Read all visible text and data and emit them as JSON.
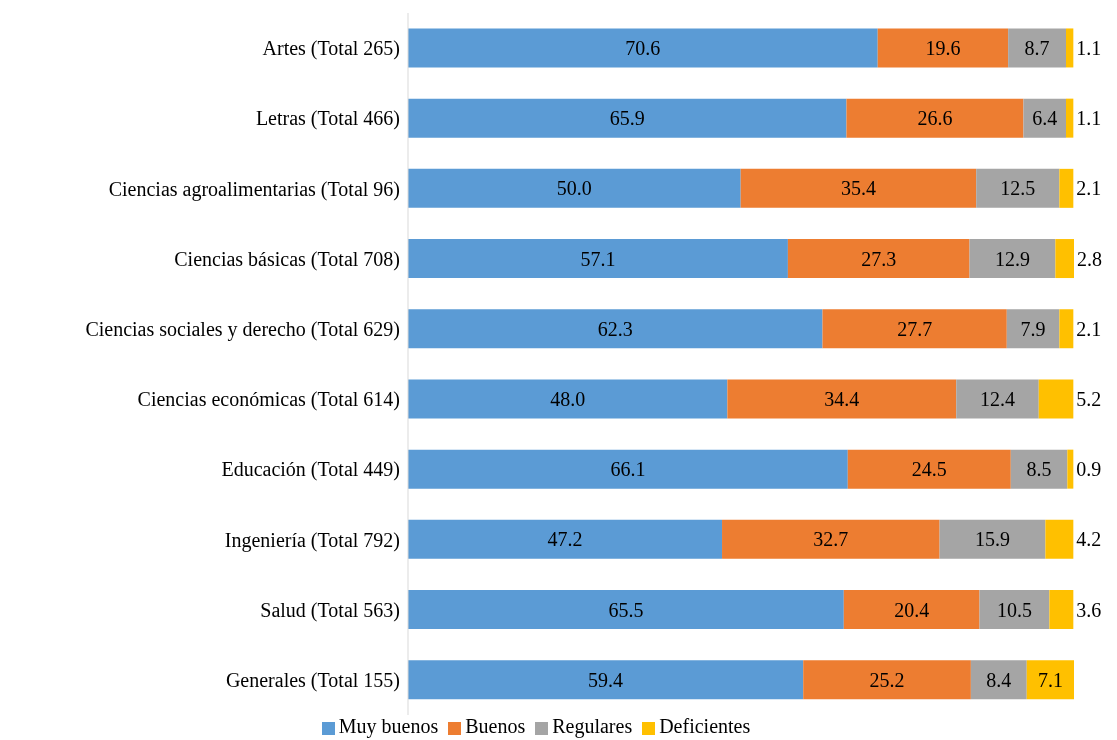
{
  "chart_data": {
    "type": "bar",
    "orientation": "horizontal",
    "stacked": true,
    "legend": "bottom",
    "grid": false,
    "tick_labels": "y",
    "categories": [
      "Artes (Total 265)",
      "Letras (Total 466)",
      "Ciencias agroalimentarias (Total 96)",
      "Ciencias básicas (Total 708)",
      "Ciencias sociales y derecho (Total 629)",
      "Ciencias económicas (Total 614)",
      "Educación (Total 449)",
      "Ingeniería (Total 792)",
      "Salud (Total 563)",
      "Generales (Total 155)"
    ],
    "series": [
      {
        "name": "Muy buenos",
        "color": "#5b9bd5",
        "values": [
          70.6,
          65.9,
          50.0,
          57.1,
          62.3,
          48.0,
          66.1,
          47.2,
          65.5,
          59.4
        ],
        "value_labels": [
          "70.6",
          "65.9",
          "50.0",
          "57.1",
          "62.3",
          "48.0",
          "66.1",
          "47.2",
          "65.5",
          "59.4"
        ]
      },
      {
        "name": "Buenos",
        "color": "#ed7d31",
        "values": [
          19.6,
          26.6,
          35.4,
          27.3,
          27.7,
          34.4,
          24.5,
          32.7,
          20.4,
          25.2
        ],
        "value_labels": [
          "19.6",
          "26.6",
          "35.4",
          "27.3",
          "27.7",
          "34.4",
          "24.5",
          "32.7",
          "20.4",
          "25.2"
        ]
      },
      {
        "name": "Regulares",
        "color": "#a5a5a5",
        "values": [
          8.7,
          6.4,
          12.5,
          12.9,
          7.9,
          12.4,
          8.5,
          15.9,
          10.5,
          8.4
        ],
        "value_labels": [
          "8.7",
          "6.4",
          "12.5",
          "12.9",
          "7.9",
          "12.4",
          "8.5",
          "15.9",
          "10.5",
          "8.4"
        ]
      },
      {
        "name": "Deficientes",
        "color": "#ffc000",
        "values": [
          1.1,
          1.1,
          2.1,
          2.8,
          2.1,
          5.2,
          0.9,
          4.2,
          3.6,
          7.1
        ],
        "value_labels": [
          "1.1",
          "1.1",
          "2.1",
          "2.8",
          "2.1",
          "5.2",
          "0.9",
          "4.2",
          "3.6",
          "7.1"
        ]
      }
    ]
  }
}
